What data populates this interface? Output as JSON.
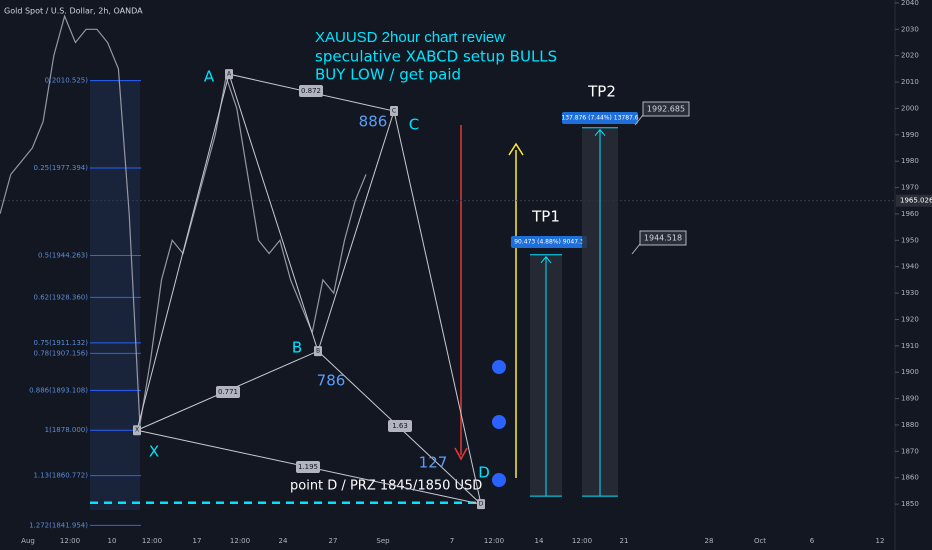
{
  "chart_data": {
    "type": "line",
    "title": "Gold Spot / U.S. Dollar, 2h, OANDA",
    "annotations": [
      "XAUUSD 2hour chart review",
      "speculative XABCD setup BULLS",
      "BUY LOW / get paid"
    ],
    "values": [
      1960,
      1975,
      1980,
      1985,
      1995,
      2020,
      2035,
      2025,
      2030,
      2030,
      2025,
      2015,
      1960,
      1880,
      1905,
      1935,
      1950,
      1945,
      1960,
      1975,
      1990,
      2012,
      2000,
      1975,
      1950,
      1945,
      1950,
      1935,
      1925,
      1915,
      1935,
      1930,
      1950,
      1965,
      1975
    ],
    "color": "#9598a1",
    "ylim": [
      1832.6,
      2041.1
    ],
    "yticks": [
      1850,
      1860,
      1870,
      1880,
      1890,
      1900,
      1910,
      1920,
      1930,
      1940,
      1950,
      1960,
      1970,
      1980,
      1990,
      2000,
      2010,
      2020,
      2030,
      2040
    ],
    "last_price": 1965.026,
    "xticks": [
      "Aug",
      "12:00",
      "10",
      "12:00",
      "17",
      "12:00",
      "24",
      "27",
      "Sep",
      "7",
      "12:00",
      "14",
      "12:00",
      "21",
      "28",
      "Oct",
      "6",
      "12"
    ],
    "fib_levels": [
      {
        "value": 2010.525,
        "label": "0(2010.525)"
      },
      {
        "value": 1977.394,
        "label": "0.25(1977.394)"
      },
      {
        "value": 1944.263,
        "label": "0.5(1944.263)"
      },
      {
        "value": 1928.36,
        "label": "0.62(1928.360)"
      },
      {
        "value": 1911.132,
        "label": "0.75(1911.132)"
      },
      {
        "value": 1907.156,
        "label": "0.78(1907.156)"
      },
      {
        "value": 1893.108,
        "label": "0.886(1893.108)"
      },
      {
        "value": 1878,
        "label": "1(1878.000)"
      },
      {
        "value": 1860.772,
        "label": "1.13(1860.772)"
      },
      {
        "value": 1841.954,
        "label": "1.272(1841.954)"
      }
    ],
    "pattern": [
      {
        "label": "X",
        "value": 1878
      },
      {
        "label": "A",
        "value": 2013
      },
      {
        "label": "B",
        "value": 1908
      },
      {
        "label": "C",
        "value": 1999
      },
      {
        "label": "D",
        "value": 1850
      }
    ],
    "ratios": [
      "0.872",
      "0.771",
      "1.63",
      "1.195"
    ],
    "leg_labels": [
      "886",
      "786",
      "127"
    ],
    "prz_label": "point D / PRZ 1845/1850 USD",
    "prz_level": 1850.5,
    "entry": 1853,
    "targets": [
      {
        "name": "TP1",
        "value": 1944.518,
        "stats": "90.473 (4.88%) 9047.3"
      },
      {
        "name": "TP2",
        "value": 1992.685,
        "stats": "137.876 (7.44%) 13787.6"
      }
    ]
  }
}
